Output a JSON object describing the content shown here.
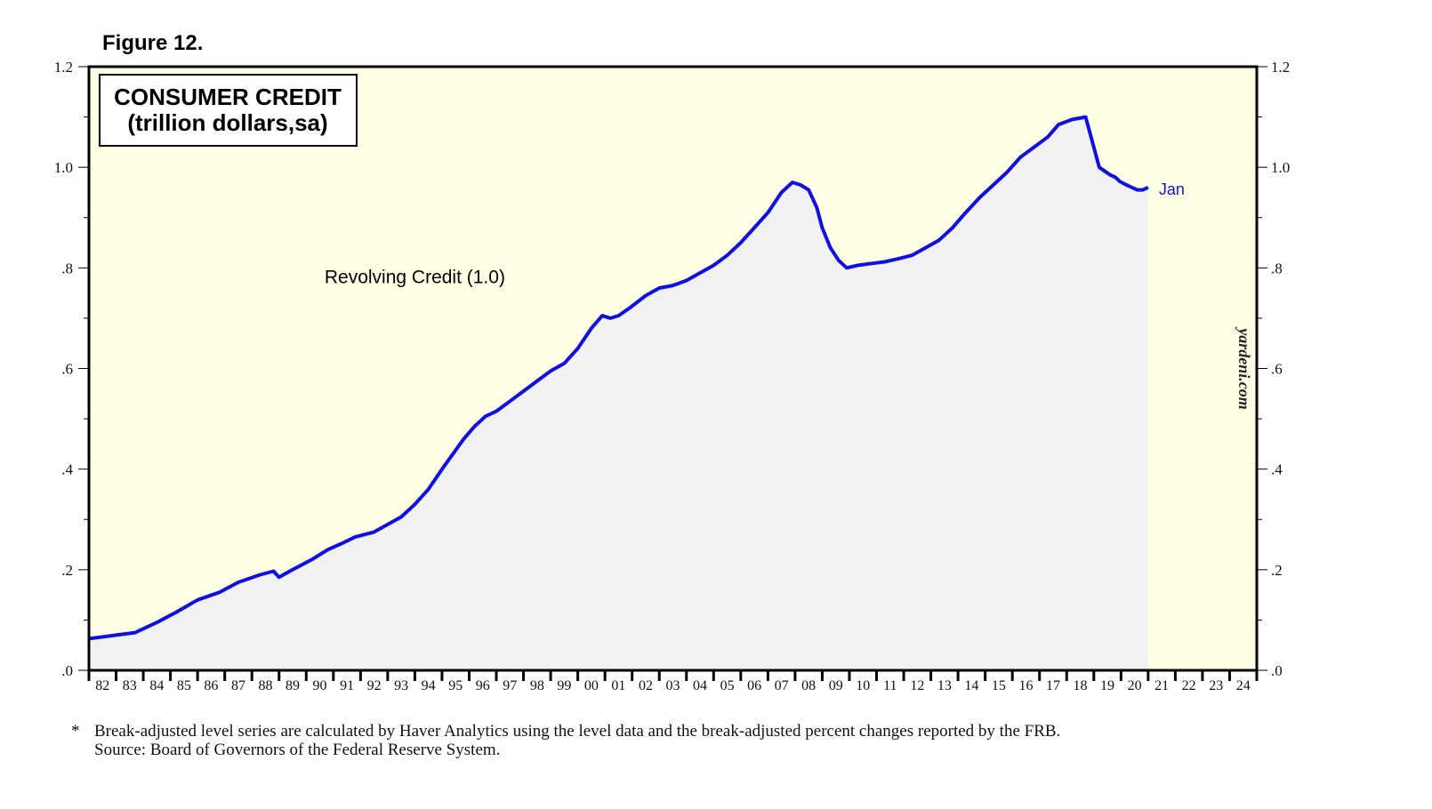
{
  "figure_label": "Figure 12.",
  "legend_box": {
    "line1": "CONSUMER CREDIT",
    "line2": "(trillion dollars,sa)"
  },
  "watermark": "yardeni.com",
  "footnote": {
    "marker": "*",
    "line1": "Break-adjusted level series are calculated by Haver Analytics using the level data and the break-adjusted percent changes reported by the FRB.",
    "line2": "Source: Board of Governors of the Federal Reserve System."
  },
  "colors": {
    "plot_background": "#ffffe6",
    "area_fill": "#f1f1f1",
    "series_line": "#1010e0",
    "axis": "#000000"
  },
  "chart_data": {
    "type": "area",
    "title": "CONSUMER CREDIT (trillion dollars,sa)",
    "ylabel": "trillion dollars, sa",
    "ylim": [
      0,
      1.2
    ],
    "xlim": [
      1982,
      2025
    ],
    "y_ticks": [
      {
        "value": 0.0,
        "label": ".0",
        "label_right": ".0"
      },
      {
        "value": 0.2,
        "label": ".2",
        "label_right": ".2"
      },
      {
        "value": 0.4,
        "label": ".4",
        "label_right": ".4"
      },
      {
        "value": 0.6,
        "label": ".6",
        "label_right": ".6"
      },
      {
        "value": 0.8,
        "label": ".8",
        "label_right": ".8"
      },
      {
        "value": 1.0,
        "label": "1.0",
        "label_right": "1.0"
      },
      {
        "value": 1.2,
        "label": "1.2",
        "label_right": "1.2"
      }
    ],
    "x_tick_labels": [
      "82",
      "83",
      "84",
      "85",
      "86",
      "87",
      "88",
      "89",
      "90",
      "91",
      "92",
      "93",
      "94",
      "95",
      "96",
      "97",
      "98",
      "99",
      "00",
      "01",
      "02",
      "03",
      "04",
      "05",
      "06",
      "07",
      "08",
      "09",
      "10",
      "11",
      "12",
      "13",
      "14",
      "15",
      "16",
      "17",
      "18",
      "19",
      "20",
      "21",
      "22",
      "23",
      "24"
    ],
    "x_tick_start_year": 1982,
    "series": [
      {
        "name": "Revolving Credit (1.0)",
        "end_label": "Jan",
        "x": [
          1982.0,
          1983.0,
          1983.7,
          1984.5,
          1985.2,
          1986.0,
          1986.8,
          1987.5,
          1988.3,
          1988.8,
          1989.0,
          1989.5,
          1990.2,
          1990.8,
          1991.3,
          1991.8,
          1992.5,
          1993.0,
          1993.5,
          1994.0,
          1994.5,
          1995.0,
          1995.4,
          1995.8,
          1996.2,
          1996.6,
          1997.0,
          1997.5,
          1998.0,
          1998.5,
          1999.0,
          1999.5,
          2000.0,
          2000.5,
          2000.9,
          2001.2,
          2001.5,
          2001.9,
          2002.5,
          2003.0,
          2003.5,
          2004.0,
          2004.5,
          2005.0,
          2005.5,
          2006.0,
          2006.5,
          2007.0,
          2007.5,
          2007.9,
          2008.2,
          2008.5,
          2008.8,
          2009.0,
          2009.3,
          2009.6,
          2009.9,
          2010.3,
          2010.7,
          2011.0,
          2011.3,
          2011.8,
          2012.3,
          2012.8,
          2013.3,
          2013.8,
          2014.2,
          2014.8,
          2015.3,
          2015.8,
          2016.3,
          2016.8,
          2017.3,
          2017.7,
          2018.2,
          2018.7,
          2019.2,
          2019.6,
          2019.8,
          2019.95,
          2020.2,
          2020.4,
          2020.6,
          2020.8,
          2021.0
        ],
        "values": [
          0.063,
          0.07,
          0.075,
          0.095,
          0.115,
          0.14,
          0.155,
          0.175,
          0.19,
          0.197,
          0.185,
          0.2,
          0.22,
          0.24,
          0.252,
          0.265,
          0.275,
          0.29,
          0.305,
          0.33,
          0.36,
          0.4,
          0.43,
          0.46,
          0.485,
          0.505,
          0.515,
          0.535,
          0.555,
          0.575,
          0.595,
          0.61,
          0.64,
          0.68,
          0.705,
          0.7,
          0.705,
          0.72,
          0.745,
          0.76,
          0.765,
          0.775,
          0.79,
          0.805,
          0.825,
          0.85,
          0.88,
          0.91,
          0.95,
          0.97,
          0.965,
          0.955,
          0.92,
          0.88,
          0.84,
          0.815,
          0.8,
          0.805,
          0.808,
          0.81,
          0.812,
          0.818,
          0.825,
          0.84,
          0.855,
          0.88,
          0.905,
          0.94,
          0.965,
          0.99,
          1.02,
          1.04,
          1.06,
          1.085,
          1.095,
          1.1,
          1.0,
          0.985,
          0.98,
          0.972,
          0.965,
          0.96,
          0.955,
          0.955,
          0.96
        ]
      }
    ],
    "annotations": [
      {
        "text": "Revolving Credit (1.0)",
        "x": 1994.0,
        "y": 0.77
      }
    ]
  }
}
